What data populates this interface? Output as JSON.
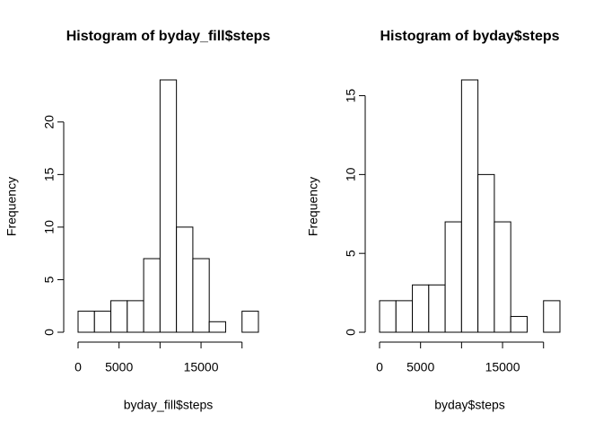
{
  "chart_data": [
    {
      "type": "histogram",
      "title": "Histogram of byday_fill$steps",
      "x_label": "byday_fill$steps",
      "y_label": "Frequency",
      "bins": [
        0,
        2000,
        4000,
        6000,
        8000,
        10000,
        12000,
        14000,
        16000,
        18000,
        20000,
        22000
      ],
      "values": [
        2,
        2,
        3,
        3,
        7,
        24,
        10,
        7,
        1,
        0,
        2
      ],
      "color": "#ffffff",
      "xlim": [
        0,
        22000
      ],
      "xticks": [
        0,
        5000,
        {
          "value": 10000
        },
        15000,
        {
          "value": 20000
        }
      ],
      "ylim": [
        0,
        24
      ],
      "yticks": [
        0,
        5,
        10,
        15,
        20
      ]
    },
    {
      "type": "histogram",
      "title": "Histogram of byday$steps",
      "x_label": "byday$steps",
      "y_label": "Frequency",
      "bins": [
        0,
        2000,
        4000,
        6000,
        8000,
        10000,
        12000,
        14000,
        16000,
        18000,
        20000,
        22000
      ],
      "values": [
        2,
        2,
        3,
        3,
        7,
        16,
        10,
        7,
        1,
        0,
        2
      ],
      "color": "#ffffff",
      "xlim": [
        0,
        22000
      ],
      "xticks": [
        0,
        5000,
        {
          "value": 10000
        },
        15000,
        {
          "value": 20000
        }
      ],
      "ylim": [
        0,
        16
      ],
      "yticks": [
        0,
        5,
        10,
        15
      ]
    }
  ]
}
